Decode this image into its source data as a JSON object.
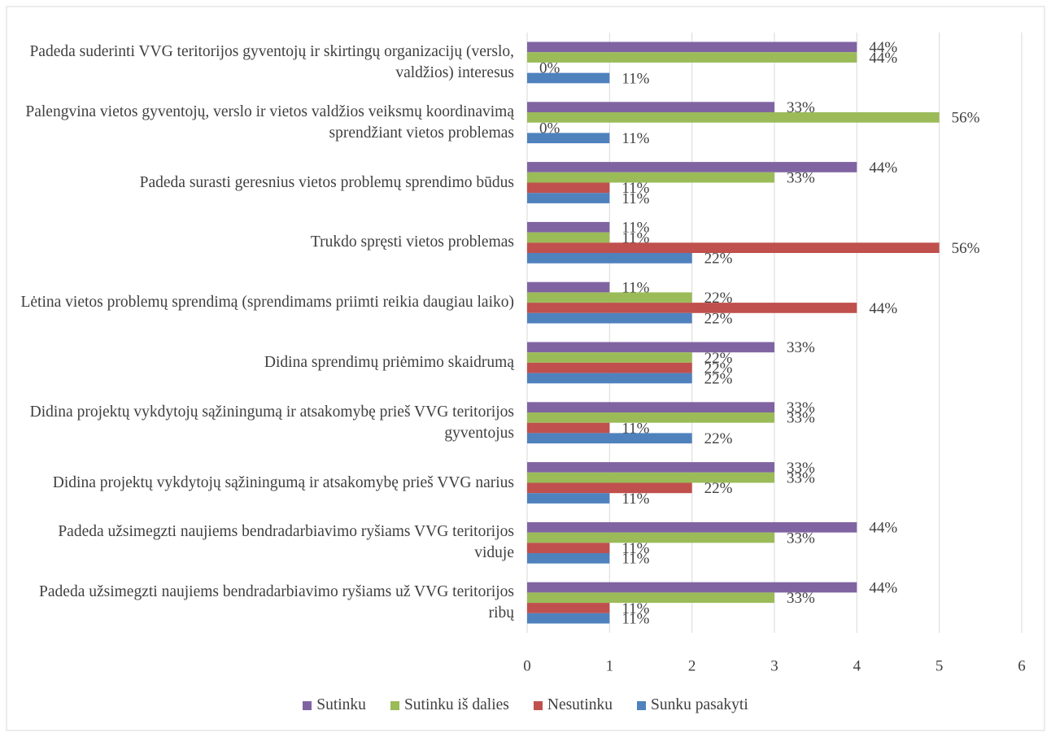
{
  "chart_data": {
    "type": "hbar",
    "categories": [
      "Padeda suderinti VVG teritorijos gyventojų ir skirtingų organizacijų (verslo, valdžios) interesus",
      "Palengvina vietos gyventojų, verslo ir vietos valdžios veiksmų koordinavimą sprendžiant vietos problemas",
      "Padeda surasti geresnius vietos problemų sprendimo būdus",
      "Trukdo spręsti vietos problemas",
      "Lėtina vietos problemų sprendimą (sprendimams priimti reikia daugiau laiko)",
      "Didina sprendimų priėmimo skaidrumą",
      "Didina projektų vykdytojų sąžiningumą ir atsakomybę prieš VVG teritorijos gyventojus",
      "Didina projektų vykdytojų sąžiningumą ir atsakomybę prieš VVG narius",
      "Padeda užsimegzti naujiems bendradarbiavimo ryšiams VVG teritorijos viduje",
      "Padeda užsimegzti naujiems bendradarbiavimo ryšiams už VVG teritorijos ribų"
    ],
    "series": [
      {
        "name": "Sutinku",
        "color": "#8064a2",
        "values": [
          4,
          3,
          4,
          1,
          1,
          3,
          3,
          3,
          4,
          4
        ],
        "value_labels": [
          "44%",
          "33%",
          "44%",
          "11%",
          "11%",
          "33%",
          "33%",
          "33%",
          "44%",
          "44%"
        ]
      },
      {
        "name": "Sutinku iš dalies",
        "color": "#9bbb59",
        "values": [
          4,
          5,
          3,
          1,
          2,
          2,
          3,
          3,
          3,
          3
        ],
        "value_labels": [
          "44%",
          "56%",
          "33%",
          "11%",
          "22%",
          "22%",
          "33%",
          "33%",
          "33%",
          "33%"
        ]
      },
      {
        "name": "Nesutinku",
        "color": "#c0504d",
        "values": [
          0,
          0,
          1,
          5,
          4,
          2,
          1,
          2,
          1,
          1
        ],
        "value_labels": [
          "0%",
          "0%",
          "11%",
          "56%",
          "44%",
          "22%",
          "11%",
          "22%",
          "11%",
          "11%"
        ]
      },
      {
        "name": "Sunku pasakyti",
        "color": "#4f81bd",
        "values": [
          1,
          1,
          1,
          2,
          2,
          2,
          2,
          1,
          1,
          1
        ],
        "value_labels": [
          "11%",
          "11%",
          "11%",
          "22%",
          "22%",
          "22%",
          "22%",
          "11%",
          "11%",
          "11%"
        ]
      }
    ],
    "xlim": [
      0,
      6
    ],
    "xticks": [
      0,
      1,
      2,
      3,
      4,
      5,
      6
    ],
    "grid": true,
    "legend": "bottom"
  }
}
